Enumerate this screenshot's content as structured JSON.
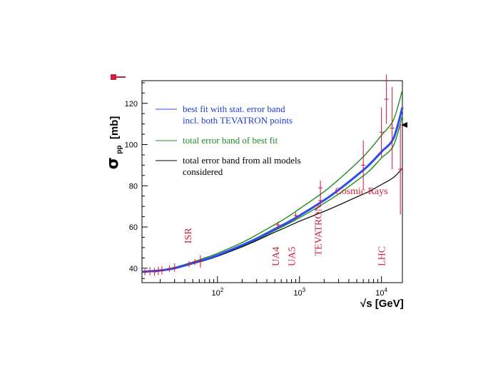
{
  "chart_data": {
    "type": "line",
    "x_scale": "log",
    "xlim": [
      12,
      18000
    ],
    "ylim": [
      33,
      131
    ],
    "ylabel_symbol": "σ",
    "ylabel_subscript": "pp",
    "ylabel_unit": "[mb]",
    "xlabel_sqrt": "√",
    "xlabel_rest": "s [GeV]",
    "y_ticks": [
      40,
      60,
      80,
      100,
      120
    ],
    "x_ticks": [
      {
        "value": 100,
        "base": "10",
        "exp": "2"
      },
      {
        "value": 1000,
        "base": "10",
        "exp": "3"
      },
      {
        "value": 10000,
        "base": "10",
        "exp": "4"
      }
    ],
    "colors": {
      "best_fit": "#2b4cf0",
      "total_error": "#1e8c1e",
      "all_models": "#000000",
      "data": "#c8143c"
    },
    "legend": [
      {
        "color": "#2b4cf0",
        "text_color": "#1e3ad8",
        "lines": [
          "best fit with stat. error band",
          "incl. both TEVATRON points"
        ]
      },
      {
        "color": "#1e8c1e",
        "text_color": "#1e8c1e",
        "lines": [
          "total error band of best fit"
        ]
      },
      {
        "color": "#000000",
        "text_color": "#000000",
        "lines": [
          "total error band from all models",
          "considered"
        ]
      }
    ],
    "series": [
      {
        "name": "best fit with stat. error band incl. both TEVATRON points",
        "role": "best_fit_band",
        "x": [
          12,
          20,
          30,
          50,
          70,
          100,
          200,
          300,
          500,
          700,
          1000,
          2000,
          3000,
          5000,
          7000,
          10000,
          14000,
          18000
        ],
        "y": [
          38.3,
          38.9,
          40.0,
          42.5,
          44.2,
          46.3,
          51.2,
          54.4,
          59.0,
          62.0,
          65.5,
          73.0,
          78.0,
          85.0,
          90.0,
          96.5,
          103.0,
          118.0
        ]
      },
      {
        "name": "total error band of best fit (upper)",
        "role": "green_upper",
        "x": [
          12,
          20,
          30,
          50,
          70,
          100,
          200,
          300,
          500,
          700,
          1000,
          2000,
          3000,
          5000,
          7000,
          10000,
          14000,
          18000
        ],
        "y": [
          38.3,
          39.0,
          40.4,
          43.0,
          45.0,
          47.2,
          52.5,
          56.2,
          61.2,
          64.6,
          68.8,
          77.2,
          83.0,
          91.0,
          97.0,
          104.5,
          112.0,
          126.5
        ]
      },
      {
        "name": "total error band of best fit (lower)",
        "role": "green_lower",
        "x": [
          12,
          20,
          30,
          50,
          70,
          100,
          200,
          300,
          500,
          700,
          1000,
          2000,
          3000,
          5000,
          7000,
          10000,
          14000,
          18000
        ],
        "y": [
          38.0,
          38.7,
          39.8,
          42.2,
          43.8,
          45.8,
          50.6,
          53.8,
          58.3,
          61.2,
          64.5,
          71.5,
          76.0,
          82.5,
          87.0,
          93.5,
          99.5,
          114.0
        ]
      },
      {
        "name": "total error band from all models considered (lower)",
        "role": "black_lower",
        "x": [
          12,
          20,
          30,
          50,
          70,
          100,
          200,
          300,
          500,
          700,
          1000,
          2000,
          3000,
          5000,
          7000,
          10000,
          14000,
          18000
        ],
        "y": [
          38.3,
          38.7,
          39.8,
          42.2,
          43.8,
          45.8,
          50.4,
          53.4,
          57.5,
          60.0,
          62.8,
          67.6,
          70.6,
          74.6,
          77.2,
          80.6,
          84.0,
          88.5
        ]
      }
    ],
    "data_points": [
      {
        "x": 13,
        "y": 38.0,
        "yerr": 1.5
      },
      {
        "x": 15,
        "y": 38.5,
        "yerr": 2.0
      },
      {
        "x": 17,
        "y": 38.2,
        "yerr": 2.0
      },
      {
        "x": 19,
        "y": 38.8,
        "yerr": 2.0
      },
      {
        "x": 21,
        "y": 39.0,
        "yerr": 2.0
      },
      {
        "x": 26,
        "y": 39.8,
        "yerr": 1.5
      },
      {
        "x": 30,
        "y": 40.3,
        "yerr": 2.0
      },
      {
        "x": 45,
        "y": 42.0,
        "yerr": 1.5
      },
      {
        "x": 53,
        "y": 43.0,
        "yerr": 1.5
      },
      {
        "x": 62,
        "y": 43.3,
        "yerr": 3.0
      },
      {
        "x": 546,
        "y": 61.0,
        "yerr": 1.5
      },
      {
        "x": 900,
        "y": 65.5,
        "yerr": 1.5
      },
      {
        "x": 1800,
        "y": 72.8,
        "yerr": 3.0
      },
      {
        "x": 1800,
        "y": 79.0,
        "yerr": 3.5
      },
      {
        "x": 6000,
        "y": 90.0,
        "yerr": 12.0
      },
      {
        "x": 10000,
        "y": 106.0,
        "yerr": 12.0
      },
      {
        "x": 11500,
        "y": 122.0,
        "yerr": 12.0
      },
      {
        "x": 13500,
        "y": 108.0,
        "yerr": 20.0
      },
      {
        "x": 17000,
        "y": 88.0,
        "yerr": 22.0
      }
    ],
    "annotations": [
      {
        "text": "ISR",
        "x": 48,
        "y": 52,
        "rotate": -90
      },
      {
        "text": "UA4",
        "x": 560,
        "y": 41,
        "rotate": -90
      },
      {
        "text": "UA5",
        "x": 880,
        "y": 41,
        "rotate": -90
      },
      {
        "text": "TEVATRON",
        "x": 1850,
        "y": 46,
        "rotate": -90
      },
      {
        "text": "LHC",
        "x": 11000,
        "y": 41,
        "rotate": -90
      },
      {
        "text": "Cosmic Rays",
        "x": 2700,
        "y": 76,
        "rotate": 0
      }
    ]
  }
}
